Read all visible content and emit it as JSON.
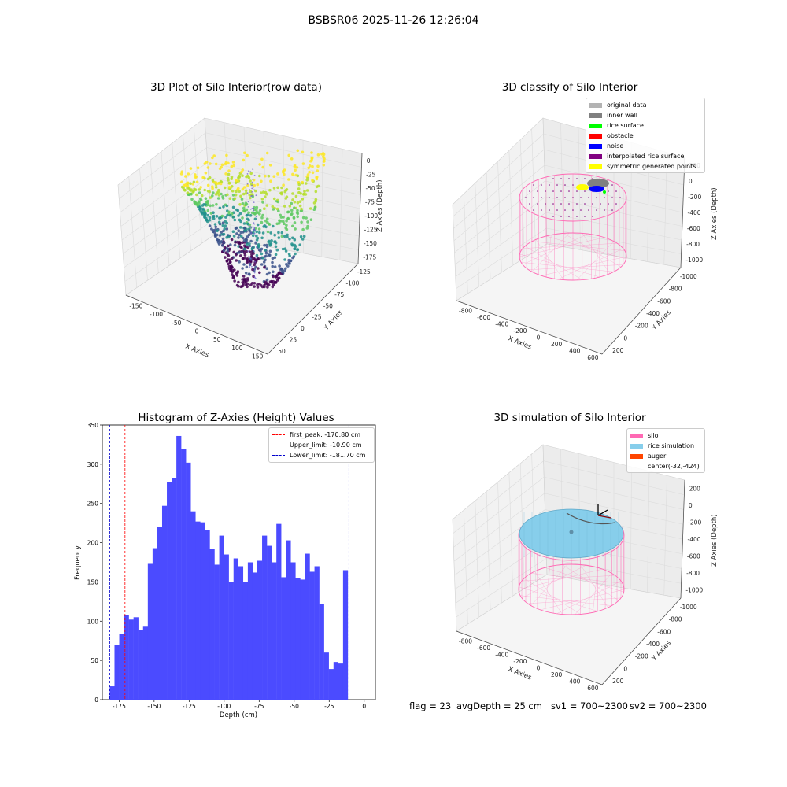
{
  "suptitle": "BSBSR06 2025-11-26 12:26:04",
  "panel1": {
    "title": "3D Plot of Silo Interior(row data)",
    "xlabel": "X Axies",
    "ylabel": "Y Axies",
    "zlabel": "Z Axies (Depth)",
    "xticks": [
      "-150",
      "-100",
      "-50",
      "0",
      "50",
      "100",
      "150"
    ],
    "yticks": [
      "50",
      "25",
      "0",
      "-25",
      "-50",
      "-75",
      "-100",
      "-125"
    ],
    "zticks": [
      "0",
      "-25",
      "-50",
      "-75",
      "-100",
      "-125",
      "-150",
      "-175"
    ]
  },
  "panel2": {
    "title": "3D classify of Silo Interior",
    "xlabel": "X Axies",
    "ylabel": "Y Axies",
    "zlabel": "Z Axies (Depth)",
    "xticks": [
      "-800",
      "-600",
      "-400",
      "-200",
      "0",
      "200",
      "400",
      "600"
    ],
    "yticks": [
      "200",
      "0",
      "-200",
      "-400",
      "-600",
      "-800",
      "-1000"
    ],
    "zticks": [
      "200",
      "0",
      "-200",
      "-400",
      "-600",
      "-800",
      "-1000"
    ],
    "legend": [
      {
        "label": "original data",
        "color": "#b3b3b3"
      },
      {
        "label": "inner wall",
        "color": "#808080"
      },
      {
        "label": "rice surface",
        "color": "#00ff00"
      },
      {
        "label": "obstacle",
        "color": "#ff0000"
      },
      {
        "label": "noise",
        "color": "#0000ff"
      },
      {
        "label": "interpolated rice surface",
        "color": "#800080"
      },
      {
        "label": "symmetric generated points",
        "color": "#ffff00"
      }
    ]
  },
  "panel4": {
    "title": "3D simulation of Silo Interior",
    "xlabel": "X Axies",
    "ylabel": "Y Axies",
    "zlabel": "Z Axies (Depth)",
    "xticks": [
      "-800",
      "-600",
      "-400",
      "-200",
      "0",
      "200",
      "400",
      "600"
    ],
    "yticks": [
      "200",
      "0",
      "-200",
      "-400",
      "-600",
      "-800",
      "-1000"
    ],
    "zticks": [
      "200",
      "0",
      "-200",
      "-400",
      "-600",
      "-800",
      "-1000"
    ],
    "legend": [
      {
        "label": "silo",
        "color": "#ff69b4"
      },
      {
        "label": "rice simulation",
        "color": "#87ceeb"
      },
      {
        "label": "auger",
        "color": "#ff4500"
      },
      {
        "label": "center(-32,-424)",
        "color": ""
      }
    ]
  },
  "status": {
    "flag": "flag = 23",
    "avg": "avgDepth = 25 cm",
    "sv1": "sv1 = 700~2300",
    "sv2": "sv2 = 700~2300"
  },
  "chart_data": [
    {
      "type": "scatter",
      "title": "3D Plot of Silo Interior(row data)",
      "xlabel": "X Axies",
      "ylabel": "Y Axies",
      "zlabel": "Z Axies (Depth)",
      "xlim": [
        -160,
        160
      ],
      "ylim": [
        -135,
        60
      ],
      "zlim": [
        -185,
        5
      ],
      "grid": true
    },
    {
      "type": "scatter",
      "title": "3D classify of Silo Interior",
      "xlabel": "X Axies",
      "ylabel": "Y Axies",
      "zlabel": "Z Axies (Depth)",
      "xlim": [
        -800,
        650
      ],
      "ylim": [
        -1050,
        250
      ],
      "zlim": [
        -1050,
        250
      ],
      "legend_position": "top-right",
      "grid": true
    },
    {
      "type": "bar",
      "title": "Histogram of Z-Axies (Height) Values",
      "xlabel": "Depth (cm)",
      "ylabel": "Frequency",
      "xlim": [
        -187,
        8
      ],
      "ylim": [
        0,
        350
      ],
      "xticks": [
        -175,
        -150,
        -125,
        -100,
        -75,
        -50,
        -25,
        0
      ],
      "yticks": [
        0,
        50,
        100,
        150,
        200,
        250,
        300,
        350
      ],
      "bin_start": -181.7,
      "bin_width": 3.4,
      "values": [
        17,
        70,
        84,
        108,
        102,
        105,
        89,
        93,
        173,
        193,
        220,
        247,
        277,
        282,
        336,
        319,
        302,
        240,
        227,
        226,
        216,
        192,
        172,
        209,
        185,
        150,
        180,
        170,
        150,
        175,
        162,
        177,
        209,
        196,
        175,
        224,
        156,
        203,
        175,
        155,
        153,
        186,
        163,
        170,
        122,
        60,
        39,
        48,
        46,
        165
      ],
      "color": "#4b4bff",
      "vlines": [
        {
          "label": "first_peak: -170.80 cm",
          "x": -170.8,
          "color": "#ff0000"
        },
        {
          "label": "Upper_limit: -10.90 cm",
          "x": -10.9,
          "color": "#0000cc"
        },
        {
          "label": "Lower_limit: -181.70 cm",
          "x": -181.7,
          "color": "#0000cc"
        }
      ],
      "legend_position": "top-right"
    },
    {
      "type": "scatter",
      "title": "3D simulation of Silo Interior",
      "xlabel": "X Axies",
      "ylabel": "Y Axies",
      "zlabel": "Z Axies (Depth)",
      "xlim": [
        -800,
        650
      ],
      "ylim": [
        -1050,
        250
      ],
      "zlim": [
        -1050,
        250
      ],
      "legend_position": "top-right",
      "grid": true
    }
  ]
}
